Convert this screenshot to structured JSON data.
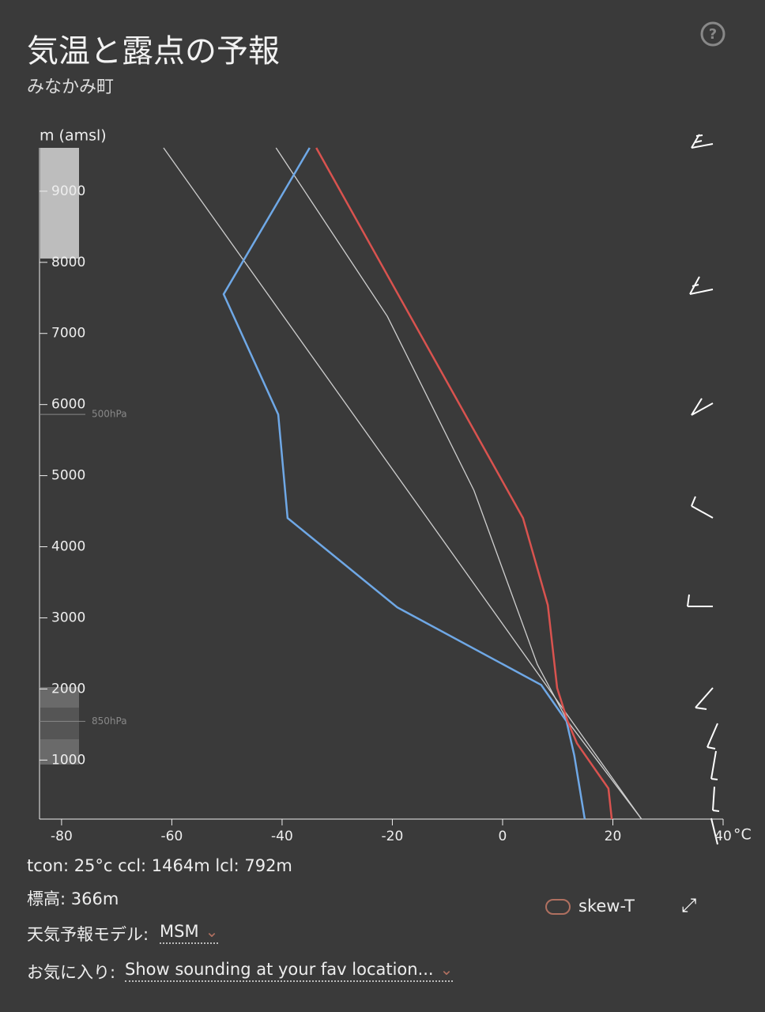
{
  "header": {
    "title": "気温と露点の予報",
    "subtitle": "みなかみ町"
  },
  "chart_data": {
    "type": "line",
    "ylabel": "m (amsl)",
    "xunit": "°C",
    "xlim": [
      -84,
      40
    ],
    "xticks": [
      -80,
      -60,
      -40,
      -20,
      0,
      20,
      40
    ],
    "ylim": [
      170,
      9610
    ],
    "yticks": [
      1000,
      2000,
      3000,
      4000,
      5000,
      6000,
      7000,
      8000,
      9000
    ],
    "series": [
      {
        "color": "#d9534f",
        "values": [
          19.8,
          19.2,
          13.5,
          11.8,
          9.9,
          8.2,
          3.7,
          -33.8
        ],
        "altitudes": [
          170,
          600,
          1234,
          1545,
          2012,
          3180,
          4404,
          9610
        ]
      },
      {
        "color": "#6fa8e6",
        "values": [
          14.9,
          13.0,
          11.6,
          7.0,
          -19.1,
          -39.0,
          -40.7,
          -50.6,
          -35.0
        ],
        "altitudes": [
          170,
          1067,
          1545,
          2057,
          3147,
          4404,
          5861,
          7552,
          9610
        ]
      },
      {
        "color": "#cfcfcf",
        "values": [
          25.2,
          -61.5
        ],
        "altitudes": [
          170,
          9610
        ]
      },
      {
        "color": "#cfcfcf",
        "values": [
          25.2,
          11.8,
          6.3,
          -5.2,
          -20.9,
          -41.1
        ],
        "altitudes": [
          170,
          1545,
          2346,
          4793,
          7240,
          9610
        ]
      }
    ],
    "annotations": [
      {
        "text": "500hPa",
        "altitude": 5861
      },
      {
        "text": "850hPa",
        "altitude": 1545
      }
    ]
  },
  "info": {
    "thermo": "tcon: 25°c ccl: 1464m lcl: 792m",
    "elevation": "標高: 366m",
    "model_label": "天気予報モデル:",
    "model": "MSM",
    "fav_label": "お気に入り:",
    "fav": "Show sounding at your fav location...",
    "toggle": "skew-T"
  }
}
